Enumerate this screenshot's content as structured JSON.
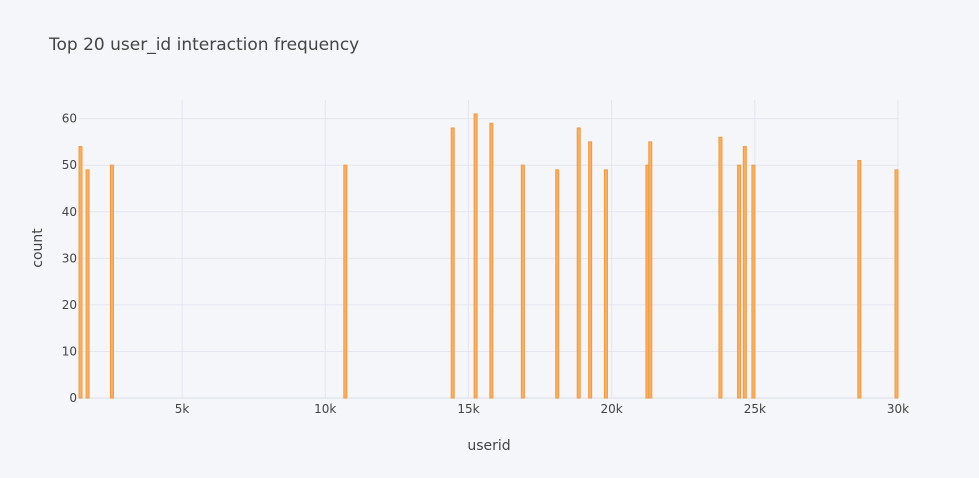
{
  "chart_data": {
    "type": "bar",
    "title": "Top 20 user_id interaction frequency",
    "xlabel": "userid",
    "ylabel": "count",
    "xlim": [
      1400,
      30000
    ],
    "ylim": [
      0,
      64
    ],
    "grid": true,
    "x_ticks": [
      {
        "value": 5000,
        "label": "5k"
      },
      {
        "value": 10000,
        "label": "10k"
      },
      {
        "value": 15000,
        "label": "15k"
      },
      {
        "value": 20000,
        "label": "20k"
      },
      {
        "value": 25000,
        "label": "25k"
      },
      {
        "value": 30000,
        "label": "30k"
      }
    ],
    "y_ticks": [
      {
        "value": 0,
        "label": "0"
      },
      {
        "value": 10,
        "label": "10"
      },
      {
        "value": 20,
        "label": "20"
      },
      {
        "value": 30,
        "label": "30"
      },
      {
        "value": 40,
        "label": "40"
      },
      {
        "value": 50,
        "label": "50"
      },
      {
        "value": 60,
        "label": "60"
      }
    ],
    "x": [
      1450,
      1700,
      2550,
      10700,
      14450,
      15250,
      15800,
      16900,
      18100,
      18850,
      19250,
      19800,
      21250,
      21350,
      23800,
      24450,
      24650,
      24950,
      28650,
      30000
    ],
    "values": [
      54,
      49,
      50,
      50,
      58,
      61,
      59,
      50,
      49,
      58,
      55,
      49,
      50,
      55,
      56,
      50,
      54,
      50,
      51,
      49
    ],
    "bar_color": "#ffae5c",
    "bar_edge_color": "#ef9a3f"
  }
}
